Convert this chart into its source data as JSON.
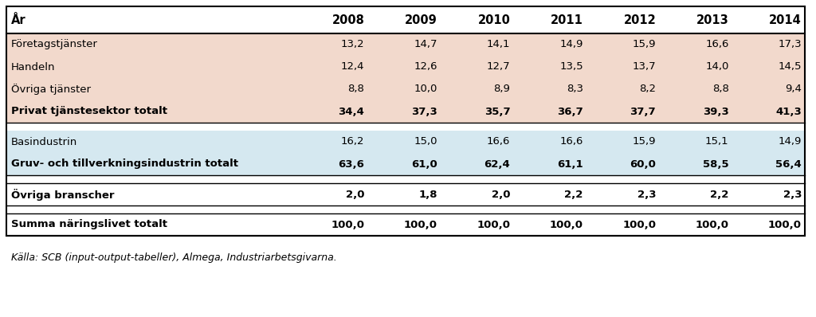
{
  "header_row": [
    "År",
    "2008",
    "2009",
    "2010",
    "2011",
    "2012",
    "2013",
    "2014"
  ],
  "rows": [
    {
      "label": "Företagstjänster",
      "values": [
        "13,2",
        "14,7",
        "14,1",
        "14,9",
        "15,9",
        "16,6",
        "17,3"
      ],
      "bold": false,
      "bg": "peach"
    },
    {
      "label": "Handeln",
      "values": [
        "12,4",
        "12,6",
        "12,7",
        "13,5",
        "13,7",
        "14,0",
        "14,5"
      ],
      "bold": false,
      "bg": "peach"
    },
    {
      "label": "Övriga tjänster",
      "values": [
        "8,8",
        "10,0",
        "8,9",
        "8,3",
        "8,2",
        "8,8",
        "9,4"
      ],
      "bold": false,
      "bg": "peach"
    },
    {
      "label": "Privat tjänstesektor totalt",
      "values": [
        "34,4",
        "37,3",
        "35,7",
        "36,7",
        "37,7",
        "39,3",
        "41,3"
      ],
      "bold": true,
      "bg": "peach"
    },
    {
      "label": "Basindustrin",
      "values": [
        "16,2",
        "15,0",
        "16,6",
        "16,6",
        "15,9",
        "15,1",
        "14,9"
      ],
      "bold": false,
      "bg": "blue"
    },
    {
      "label": "Gruv- och tillverkningsindustrin totalt",
      "values": [
        "63,6",
        "61,0",
        "62,4",
        "61,1",
        "60,0",
        "58,5",
        "56,4"
      ],
      "bold": true,
      "bg": "blue"
    },
    {
      "label": "Övriga branscher",
      "values": [
        "2,0",
        "1,8",
        "2,0",
        "2,2",
        "2,3",
        "2,2",
        "2,3"
      ],
      "bold": true,
      "bg": "white"
    },
    {
      "label": "Summa näringslivet totalt",
      "values": [
        "100,0",
        "100,0",
        "100,0",
        "100,0",
        "100,0",
        "100,0",
        "100,0"
      ],
      "bold": true,
      "bg": "white"
    }
  ],
  "footer": "Källa: SCB (input-output-tabeller), Almega, Industriarbetsgivarna.",
  "peach_color": "#F2D9CC",
  "blue_color": "#D5E8F0",
  "white_color": "#FFFFFF",
  "header_fontsize": 10.5,
  "body_fontsize": 9.5,
  "footer_fontsize": 9
}
